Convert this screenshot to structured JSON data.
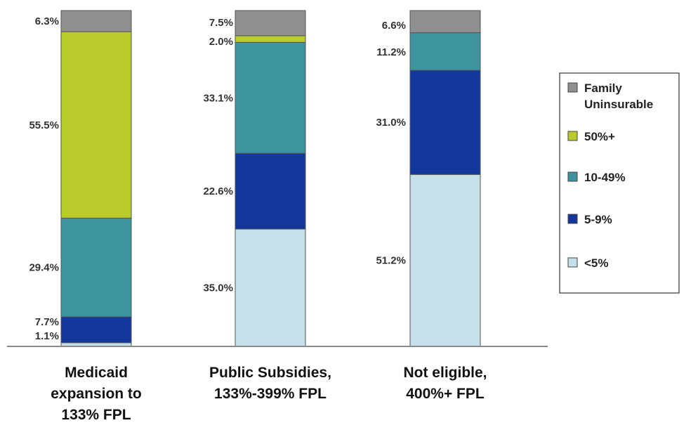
{
  "chart_data": {
    "type": "bar",
    "stacked": true,
    "normalized": true,
    "categories": [
      [
        "Medicaid",
        "expansion to",
        "133% FPL"
      ],
      [
        "Public Subsidies,",
        "133%-399% FPL"
      ],
      [
        "Not eligible,",
        "400%+ FPL"
      ]
    ],
    "series": [
      {
        "name": "<5%",
        "color": "#c5e0e8",
        "values": [
          1.1,
          35.0,
          51.2
        ],
        "labels": [
          "1.1%",
          "35.0%",
          "51.2%"
        ]
      },
      {
        "name": "5-9%",
        "color": "#13379a",
        "values": [
          7.7,
          22.6,
          31.0
        ],
        "labels": [
          "7.7%",
          "22.6%",
          "31.0%"
        ]
      },
      {
        "name": "10-49%",
        "color": "#3d949e",
        "values": [
          29.4,
          33.1,
          11.2
        ],
        "labels": [
          "29.4%",
          "33.1%",
          "11.2%"
        ]
      },
      {
        "name": "50%+",
        "color": "#b9cc2c",
        "values": [
          55.5,
          2.0,
          0
        ],
        "labels": [
          "55.5%",
          "2.0%",
          ""
        ]
      },
      {
        "name": "Family Uninsurable",
        "color": "#8f8f8f",
        "values": [
          6.3,
          7.5,
          6.6
        ],
        "labels": [
          "6.3%",
          "7.5%",
          "6.6%"
        ]
      }
    ],
    "legend": {
      "position": "right",
      "order": [
        4,
        3,
        2,
        1,
        0
      ],
      "entries": [
        [
          "Family",
          "Uninsurable"
        ],
        [
          "50%+"
        ],
        [
          "10-49%"
        ],
        [
          "5-9%"
        ],
        [
          "<5%"
        ]
      ]
    },
    "grid": false,
    "title": "",
    "xlabel": "",
    "ylabel": ""
  }
}
